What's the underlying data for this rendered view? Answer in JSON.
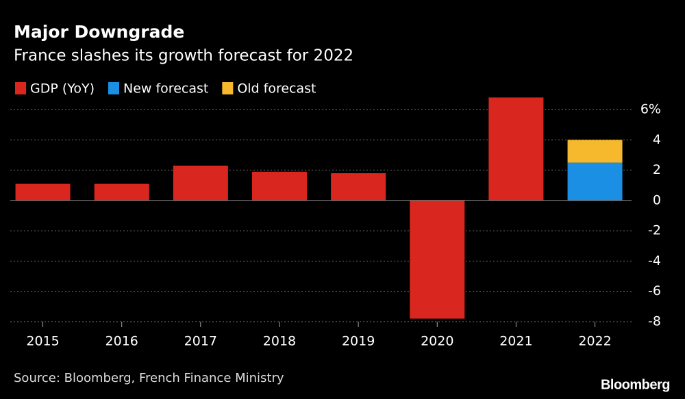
{
  "chart_data": {
    "type": "bar",
    "stacked": true,
    "title": "Major Downgrade",
    "subtitle": "France slashes its growth forecast for 2022",
    "categories": [
      "2015",
      "2016",
      "2017",
      "2018",
      "2019",
      "2020",
      "2021",
      "2022"
    ],
    "series": [
      {
        "name": "GDP (YoY)",
        "color": "#d9271f",
        "values": [
          1.1,
          1.1,
          2.3,
          1.9,
          1.8,
          -7.8,
          6.8,
          null
        ]
      },
      {
        "name": "New forecast",
        "color": "#1a8fe3",
        "values": [
          null,
          null,
          null,
          null,
          null,
          null,
          null,
          2.5
        ]
      },
      {
        "name": "Old forecast",
        "color": "#f6b92d",
        "values": [
          null,
          null,
          null,
          null,
          null,
          null,
          null,
          1.5
        ]
      }
    ],
    "ylim": [
      -8,
      7
    ],
    "yticks": [
      -8,
      -6,
      -4,
      -2,
      0,
      2,
      4,
      {
        "value": 6,
        "label": "6%"
      }
    ],
    "grid": true,
    "source": "Source: Bloomberg, French Finance Ministry",
    "logo": "Bloomberg"
  }
}
